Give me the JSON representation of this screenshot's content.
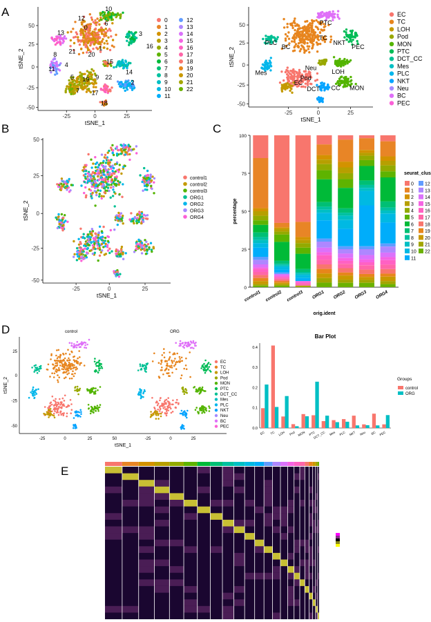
{
  "panels": {
    "A": "A",
    "B": "B",
    "C": "C",
    "D": "D",
    "E": "E"
  },
  "palette23": [
    "#F8766D",
    "#E88526",
    "#D39200",
    "#B79F00",
    "#93AA00",
    "#5EB300",
    "#00BA38",
    "#00BF74",
    "#00C19F",
    "#00BFC4",
    "#00B9E3",
    "#00ADFA",
    "#619CFF",
    "#AE87FF",
    "#DB72FB",
    "#F564E3",
    "#FF61C3",
    "#FF66A8",
    "#F8766D",
    "#E7861B",
    "#C99800",
    "#A3A500",
    "#6BB100"
  ],
  "celltype_colors": [
    "#F8766D",
    "#E7851E",
    "#C49A00",
    "#99A800",
    "#53B400",
    "#00BC56",
    "#00C094",
    "#00BFC4",
    "#00B6EB",
    "#06A4FF",
    "#A58AFF",
    "#DF70F8",
    "#FB61D7"
  ],
  "sample_colors": [
    "#F8766D",
    "#C49A00",
    "#53B400",
    "#00C094",
    "#00B6EB",
    "#A58AFF",
    "#FB61D7"
  ],
  "panelA_left": {
    "xlabel": "tSNE_1",
    "ylabel": "tSNE_2",
    "xticks": [
      "-25",
      "0",
      "25"
    ],
    "yticks": [
      "50",
      "25",
      "0",
      "-25",
      "-50"
    ],
    "legend_col1": [
      "0",
      "1",
      "2",
      "3",
      "4",
      "5",
      "6",
      "7",
      "8",
      "9",
      "10",
      "11"
    ],
    "legend_col2": [
      "12",
      "13",
      "14",
      "15",
      "16",
      "17",
      "18",
      "19",
      "20",
      "21",
      "22"
    ],
    "cluster_labels": [
      "0",
      "1",
      "2",
      "3",
      "4",
      "5",
      "6",
      "7",
      "8",
      "9",
      "10",
      "11",
      "12",
      "13",
      "14",
      "15",
      "16",
      "17",
      "18",
      "19",
      "20",
      "21",
      "22"
    ]
  },
  "panelA_right": {
    "xlabel": "tSNE_1",
    "ylabel": "tSNE_2",
    "xticks": [
      "-25",
      "0",
      "25"
    ],
    "yticks": [
      "50",
      "25",
      "0",
      "-25",
      "-50"
    ],
    "legend": [
      "EC",
      "TC",
      "LOH",
      "Pod",
      "MON",
      "PTC",
      "DCT_CC",
      "Mes",
      "PLC",
      "NKT",
      "Neu",
      "BC",
      "PEC"
    ],
    "cluster_labels": [
      "PTC",
      "TC",
      "NKT",
      "PLC",
      "BC",
      "PEC",
      "Mes",
      "Neu",
      "Pod",
      "LOH",
      "EC",
      "DCT",
      "CC",
      "MON"
    ]
  },
  "panelB": {
    "xlabel": "tSNE_1",
    "ylabel": "tSNE_2",
    "xticks": [
      "-25",
      "0",
      "25"
    ],
    "yticks": [
      "50",
      "25",
      "0",
      "-25",
      "-50"
    ],
    "legend": [
      "control1",
      "control2",
      "control3",
      "ORG1",
      "ORG2",
      "ORG3",
      "ORG4"
    ]
  },
  "panelD_tsne": {
    "left_title": "control",
    "right_title": "ORG",
    "xlabel": "tSNE_1",
    "ylabel": "tSNE_2",
    "xticks": [
      "-25",
      "0",
      "25",
      "50",
      "-25",
      "0",
      "25"
    ],
    "yticks": [
      "25",
      "0",
      "-25",
      "-50"
    ],
    "legend": [
      "EC",
      "TC",
      "LOH",
      "Pod",
      "MON",
      "PTC",
      "DCT_CC",
      "Mes",
      "PLC",
      "NKT",
      "Neu",
      "BC",
      "PEC"
    ]
  },
  "panelE": {
    "cluster_count": 23
  },
  "chart_data": [
    {
      "type": "bar",
      "id": "panelC",
      "title": "",
      "xlabel": "orig.ident",
      "ylabel": "percentage",
      "categories": [
        "control1",
        "control2",
        "control3",
        "ORG1",
        "ORG2",
        "ORG3",
        "ORG4"
      ],
      "ylim": [
        0,
        100
      ],
      "yticks": [
        "0",
        "25",
        "50",
        "75",
        "100"
      ],
      "legend_title": "seurat_clusters",
      "stacked": true,
      "series": [
        {
          "name": "0",
          "values": [
            15,
            60,
            57,
            6,
            3,
            2,
            4
          ]
        },
        {
          "name": "1",
          "values": [
            33,
            3,
            10,
            7,
            15,
            8,
            10
          ]
        },
        {
          "name": "2",
          "values": [
            2,
            1,
            2,
            3,
            4,
            2,
            3
          ]
        },
        {
          "name": "3",
          "values": [
            3,
            2,
            2,
            3,
            4,
            2,
            3
          ]
        },
        {
          "name": "4",
          "values": [
            3,
            2,
            3,
            4,
            4,
            3,
            4
          ]
        },
        {
          "name": "5",
          "values": [
            3,
            5,
            4,
            6,
            6,
            4,
            4
          ]
        },
        {
          "name": "6",
          "values": [
            5,
            13,
            10,
            15,
            14,
            10,
            16
          ]
        },
        {
          "name": "7",
          "values": [
            3,
            2,
            2,
            3,
            3,
            3,
            4
          ]
        },
        {
          "name": "8",
          "values": [
            2,
            1,
            1,
            2,
            2,
            2,
            2
          ]
        },
        {
          "name": "9",
          "values": [
            2,
            1,
            1,
            2,
            3,
            2,
            2
          ]
        },
        {
          "name": "10",
          "values": [
            3,
            2,
            2,
            5,
            6,
            10,
            6
          ]
        },
        {
          "name": "11",
          "values": [
            6,
            2,
            2,
            12,
            12,
            28,
            14
          ]
        },
        {
          "name": "12",
          "values": [
            2,
            1,
            0,
            2,
            2,
            2,
            2
          ]
        },
        {
          "name": "13",
          "values": [
            3,
            0,
            0,
            4,
            3,
            4,
            4
          ]
        },
        {
          "name": "14",
          "values": [
            2,
            1,
            0,
            3,
            3,
            3,
            3
          ]
        },
        {
          "name": "15",
          "values": [
            1,
            1,
            1,
            2,
            2,
            2,
            2
          ]
        },
        {
          "name": "16",
          "values": [
            2,
            1,
            1,
            3,
            2,
            2,
            3
          ]
        },
        {
          "name": "17",
          "values": [
            2,
            1,
            1,
            3,
            3,
            3,
            3
          ]
        },
        {
          "name": "18",
          "values": [
            2,
            1,
            0,
            3,
            3,
            3,
            3
          ]
        },
        {
          "name": "19",
          "values": [
            2,
            1,
            0,
            3,
            2,
            2,
            2
          ]
        },
        {
          "name": "20",
          "values": [
            2,
            1,
            0,
            3,
            3,
            2,
            3
          ]
        },
        {
          "name": "21",
          "values": [
            1,
            1,
            1,
            3,
            2,
            2,
            2
          ]
        },
        {
          "name": "22",
          "values": [
            1,
            1,
            0,
            3,
            3,
            3,
            2
          ]
        }
      ]
    },
    {
      "type": "bar",
      "id": "panelD_bar",
      "title": "Bar Plot",
      "xlabel": "",
      "ylabel": "",
      "categories": [
        "EC",
        "TC",
        "LOH",
        "Pod",
        "MON",
        "PTC",
        "DCT_CC",
        "Mes",
        "PLC",
        "NKT",
        "Neu",
        "BC",
        "PEC"
      ],
      "ylim": [
        0,
        0.42
      ],
      "yticks": [
        "0.0",
        "0.1",
        "0.2",
        "0.3",
        "0.4"
      ],
      "legend_title": "Groups",
      "series": [
        {
          "name": "control",
          "values": [
            0.098,
            0.408,
            0.057,
            0.019,
            0.069,
            0.063,
            0.034,
            0.039,
            0.044,
            0.061,
            0.018,
            0.071,
            0.018
          ]
        },
        {
          "name": "ORG",
          "values": [
            0.215,
            0.104,
            0.158,
            0.009,
            0.058,
            0.229,
            0.061,
            0.029,
            0.031,
            0.013,
            0.014,
            0.013,
            0.064
          ]
        }
      ]
    }
  ]
}
